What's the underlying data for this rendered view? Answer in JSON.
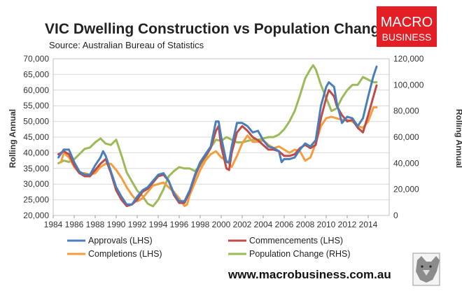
{
  "title": "VIC Dwelling Construction vs Population Change",
  "source": "Source: Australian Bureau of Statistics",
  "logo": {
    "line1": "MACRO",
    "line2": "BUSINESS",
    "color": "#e31e24"
  },
  "url": "www.macrobusiness.com.au",
  "chart_data": {
    "type": "line",
    "left_axis": {
      "label": "Rolling Annual",
      "range": [
        20000,
        70000
      ],
      "ticks": [
        "20,000",
        "25,000",
        "30,000",
        "35,000",
        "40,000",
        "45,000",
        "50,000",
        "55,000",
        "60,000",
        "65,000",
        "70,000"
      ]
    },
    "right_axis": {
      "label": "Rolling Annual",
      "range": [
        0,
        120000
      ],
      "ticks": [
        "0",
        "20,000",
        "40,000",
        "60,000",
        "80,000",
        "100,000",
        "120,000"
      ]
    },
    "x_axis": {
      "range": [
        1984,
        2016
      ],
      "ticks": [
        "1984",
        "1986",
        "1988",
        "1990",
        "1992",
        "1994",
        "1996",
        "1998",
        "2000",
        "2002",
        "2004",
        "2006",
        "2008",
        "2010",
        "2012",
        "2014"
      ]
    },
    "grid": true,
    "legend_position": "bottom",
    "series": [
      {
        "name": "Approvals (LHS)",
        "axis": "left",
        "color": "#4a7ebb",
        "points": [
          [
            1984.5,
            38500
          ],
          [
            1985,
            41000
          ],
          [
            1985.5,
            41000
          ],
          [
            1986,
            37000
          ],
          [
            1986.5,
            34000
          ],
          [
            1987,
            33000
          ],
          [
            1987.5,
            33000
          ],
          [
            1988,
            36000
          ],
          [
            1988.5,
            38500
          ],
          [
            1988.75,
            40500
          ],
          [
            1989,
            39000
          ],
          [
            1989.5,
            34000
          ],
          [
            1990,
            29000
          ],
          [
            1990.5,
            26000
          ],
          [
            1991,
            23500
          ],
          [
            1991.5,
            23500
          ],
          [
            1992,
            26000
          ],
          [
            1992.5,
            28000
          ],
          [
            1993,
            29000
          ],
          [
            1993.5,
            31000
          ],
          [
            1994,
            33000
          ],
          [
            1994.5,
            33500
          ],
          [
            1995,
            31000
          ],
          [
            1995.5,
            27000
          ],
          [
            1996,
            24500
          ],
          [
            1996.5,
            24500
          ],
          [
            1997,
            28000
          ],
          [
            1997.5,
            33000
          ],
          [
            1998,
            37000
          ],
          [
            1998.5,
            39500
          ],
          [
            1999,
            42000
          ],
          [
            1999.5,
            50000
          ],
          [
            1999.75,
            50000
          ],
          [
            2000,
            45000
          ],
          [
            2000.5,
            37000
          ],
          [
            2000.75,
            37000
          ],
          [
            2001,
            42000
          ],
          [
            2001.5,
            49500
          ],
          [
            2002,
            49500
          ],
          [
            2002.5,
            48500
          ],
          [
            2003,
            46500
          ],
          [
            2003.5,
            47000
          ],
          [
            2004,
            44000
          ],
          [
            2004.5,
            42000
          ],
          [
            2005,
            41500
          ],
          [
            2005.5,
            40500
          ],
          [
            2005.75,
            37000
          ],
          [
            2006,
            38000
          ],
          [
            2006.5,
            38000
          ],
          [
            2007,
            38500
          ],
          [
            2007.5,
            41000
          ],
          [
            2008,
            43000
          ],
          [
            2008.5,
            42000
          ],
          [
            2009,
            44000
          ],
          [
            2009.5,
            55000
          ],
          [
            2010,
            61000
          ],
          [
            2010.25,
            62500
          ],
          [
            2010.75,
            61000
          ],
          [
            2011,
            56000
          ],
          [
            2011.5,
            49500
          ],
          [
            2012,
            51500
          ],
          [
            2012.5,
            51000
          ],
          [
            2013,
            48500
          ],
          [
            2013.5,
            51000
          ],
          [
            2014,
            58000
          ],
          [
            2014.5,
            64500
          ],
          [
            2014.8,
            67500
          ]
        ]
      },
      {
        "name": "Commencements (LHS)",
        "axis": "left",
        "color": "#be4b48",
        "points": [
          [
            1984.5,
            39500
          ],
          [
            1985,
            40500
          ],
          [
            1985.5,
            39500
          ],
          [
            1986,
            36000
          ],
          [
            1986.5,
            33500
          ],
          [
            1987,
            32500
          ],
          [
            1987.5,
            32500
          ],
          [
            1988,
            34500
          ],
          [
            1988.5,
            36500
          ],
          [
            1989,
            38000
          ],
          [
            1989.5,
            33500
          ],
          [
            1990,
            28000
          ],
          [
            1990.5,
            25000
          ],
          [
            1991,
            23000
          ],
          [
            1991.5,
            23500
          ],
          [
            1992,
            25000
          ],
          [
            1992.5,
            27500
          ],
          [
            1993,
            28500
          ],
          [
            1993.5,
            30500
          ],
          [
            1994,
            32500
          ],
          [
            1994.5,
            33000
          ],
          [
            1995,
            31000
          ],
          [
            1995.5,
            26500
          ],
          [
            1996,
            24000
          ],
          [
            1996.5,
            24000
          ],
          [
            1997,
            27500
          ],
          [
            1997.5,
            32500
          ],
          [
            1998,
            36500
          ],
          [
            1998.5,
            39000
          ],
          [
            1999,
            41500
          ],
          [
            1999.5,
            47000
          ],
          [
            1999.75,
            48500
          ],
          [
            2000,
            42000
          ],
          [
            2000.5,
            35000
          ],
          [
            2000.75,
            34500
          ],
          [
            2001,
            40000
          ],
          [
            2001.5,
            46500
          ],
          [
            2002,
            48500
          ],
          [
            2002.5,
            47000
          ],
          [
            2003,
            45000
          ],
          [
            2003.5,
            44000
          ],
          [
            2004,
            42500
          ],
          [
            2004.5,
            41000
          ],
          [
            2005,
            41000
          ],
          [
            2005.5,
            40500
          ],
          [
            2006,
            39000
          ],
          [
            2006.5,
            39000
          ],
          [
            2007,
            39500
          ],
          [
            2007.5,
            41500
          ],
          [
            2008,
            42500
          ],
          [
            2008.5,
            41500
          ],
          [
            2009,
            42500
          ],
          [
            2009.5,
            51000
          ],
          [
            2010,
            57500
          ],
          [
            2010.25,
            60000
          ],
          [
            2010.75,
            58000
          ],
          [
            2011,
            55000
          ],
          [
            2011.5,
            52000
          ],
          [
            2012,
            50000
          ],
          [
            2012.5,
            50500
          ],
          [
            2013,
            48000
          ],
          [
            2013.5,
            46500
          ],
          [
            2014,
            52000
          ],
          [
            2014.5,
            58000
          ],
          [
            2014.8,
            61500
          ]
        ]
      },
      {
        "name": "Completions (LHS)",
        "axis": "left",
        "color": "#f59d3e",
        "points": [
          [
            1984.75,
            37000
          ],
          [
            1985,
            40000
          ],
          [
            1985.5,
            38500
          ],
          [
            1986,
            35500
          ],
          [
            1986.5,
            33500
          ],
          [
            1987,
            33500
          ],
          [
            1987.5,
            33000
          ],
          [
            1988,
            33500
          ],
          [
            1988.5,
            35500
          ],
          [
            1989,
            36500
          ],
          [
            1989.5,
            36500
          ],
          [
            1990,
            34500
          ],
          [
            1990.5,
            32000
          ],
          [
            1991,
            29000
          ],
          [
            1991.5,
            26500
          ],
          [
            1992,
            24500
          ],
          [
            1992.5,
            25500
          ],
          [
            1993,
            27500
          ],
          [
            1993.5,
            29500
          ],
          [
            1994,
            30000
          ],
          [
            1994.5,
            30500
          ],
          [
            1995,
            29000
          ],
          [
            1995.5,
            27500
          ],
          [
            1996,
            25500
          ],
          [
            1996.5,
            23000
          ],
          [
            1996.75,
            23500
          ],
          [
            1997,
            26500
          ],
          [
            1997.5,
            30500
          ],
          [
            1998,
            34500
          ],
          [
            1998.5,
            37500
          ],
          [
            1999,
            39500
          ],
          [
            1999.5,
            40500
          ],
          [
            2000,
            38500
          ],
          [
            2000.5,
            37500
          ],
          [
            2001,
            35500
          ],
          [
            2001.5,
            39000
          ],
          [
            2002,
            43000
          ],
          [
            2002.5,
            45500
          ],
          [
            2003,
            43500
          ],
          [
            2003.5,
            43500
          ],
          [
            2004,
            44000
          ],
          [
            2004.5,
            42500
          ],
          [
            2005,
            41500
          ],
          [
            2005.5,
            42000
          ],
          [
            2006,
            41000
          ],
          [
            2006.5,
            40000
          ],
          [
            2007,
            41000
          ],
          [
            2007.5,
            40500
          ],
          [
            2008,
            37500
          ],
          [
            2008.5,
            38500
          ],
          [
            2009,
            43000
          ],
          [
            2009.5,
            48500
          ],
          [
            2010,
            51000
          ],
          [
            2010.5,
            51500
          ],
          [
            2011,
            51000
          ],
          [
            2011.5,
            50500
          ],
          [
            2012,
            50500
          ],
          [
            2012.5,
            50000
          ],
          [
            2013,
            48500
          ],
          [
            2013.5,
            48000
          ],
          [
            2014,
            50000
          ],
          [
            2014.5,
            54500
          ],
          [
            2014.8,
            54500
          ]
        ]
      },
      {
        "name": "Population Change (RHS)",
        "axis": "right",
        "color": "#9bbb59",
        "points": [
          [
            1984.5,
            40000
          ],
          [
            1985,
            42000
          ],
          [
            1985.5,
            41000
          ],
          [
            1986,
            43000
          ],
          [
            1986.5,
            47000
          ],
          [
            1987,
            51000
          ],
          [
            1987.5,
            52000
          ],
          [
            1988,
            56000
          ],
          [
            1988.5,
            59000
          ],
          [
            1989,
            55000
          ],
          [
            1989.5,
            54000
          ],
          [
            1990,
            58000
          ],
          [
            1990.5,
            46000
          ],
          [
            1991,
            33000
          ],
          [
            1991.5,
            26000
          ],
          [
            1992,
            19000
          ],
          [
            1992.5,
            15000
          ],
          [
            1993,
            9000
          ],
          [
            1993.5,
            7000
          ],
          [
            1994,
            12000
          ],
          [
            1994.5,
            20000
          ],
          [
            1995,
            30000
          ],
          [
            1995.5,
            34000
          ],
          [
            1996,
            37000
          ],
          [
            1996.5,
            36000
          ],
          [
            1997,
            36000
          ],
          [
            1997.5,
            34000
          ],
          [
            1998,
            38000
          ],
          [
            1998.5,
            44000
          ],
          [
            1999,
            52000
          ],
          [
            1999.5,
            58000
          ],
          [
            2000,
            57000
          ],
          [
            2000.5,
            60000
          ],
          [
            2001,
            58000
          ],
          [
            2001.5,
            56000
          ],
          [
            2002,
            56000
          ],
          [
            2002.5,
            57000
          ],
          [
            2003,
            58000
          ],
          [
            2003.5,
            58000
          ],
          [
            2004,
            59000
          ],
          [
            2004.5,
            60000
          ],
          [
            2005,
            60000
          ],
          [
            2005.5,
            62000
          ],
          [
            2006,
            66000
          ],
          [
            2006.5,
            72000
          ],
          [
            2007,
            80000
          ],
          [
            2007.5,
            92000
          ],
          [
            2008,
            105000
          ],
          [
            2008.5,
            112000
          ],
          [
            2008.75,
            115000
          ],
          [
            2009,
            112000
          ],
          [
            2009.5,
            100000
          ],
          [
            2010,
            90000
          ],
          [
            2010.5,
            80000
          ],
          [
            2011,
            82000
          ],
          [
            2011.5,
            90000
          ],
          [
            2012,
            96000
          ],
          [
            2012.5,
            100000
          ],
          [
            2013,
            100000
          ],
          [
            2013.5,
            106000
          ],
          [
            2014,
            104000
          ],
          [
            2014.5,
            102000
          ],
          [
            2014.8,
            102000
          ]
        ]
      }
    ]
  }
}
